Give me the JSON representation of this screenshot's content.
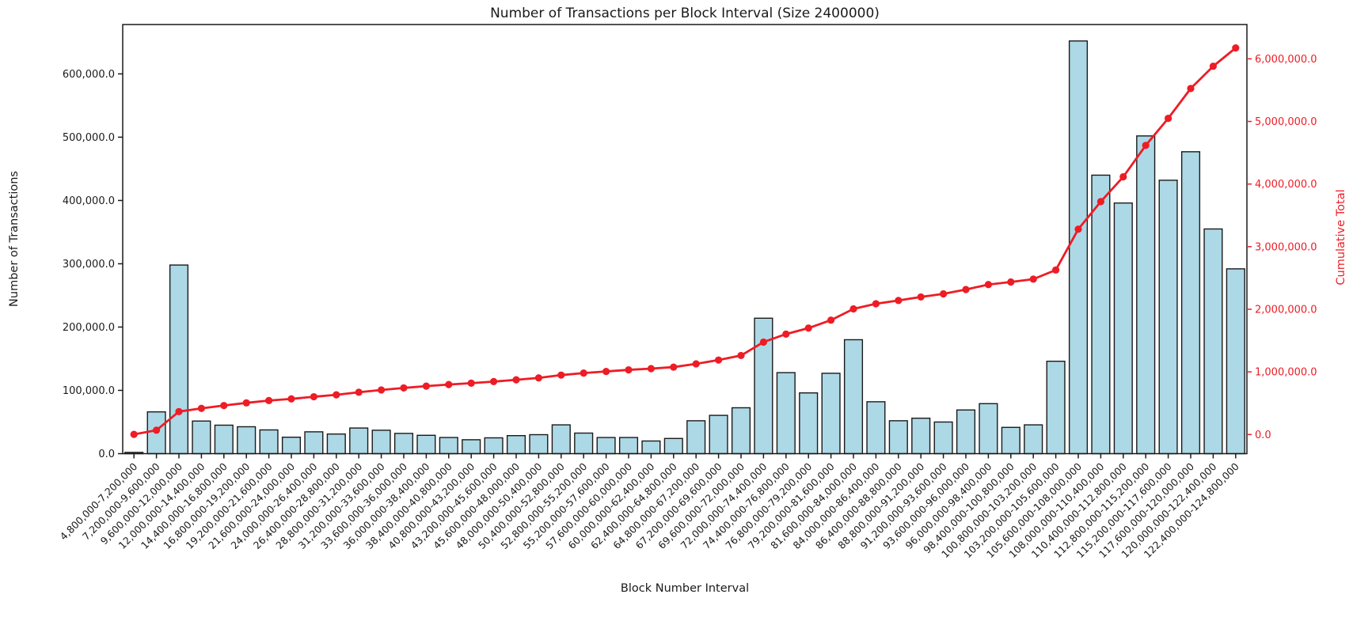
{
  "chart_data": {
    "type": "bar",
    "title": "Number of Transactions per Block Interval (Size 2400000)",
    "xlabel": "Block Number Interval",
    "ylabel_left": "Number of Transactions",
    "ylabel_right": "Cumulative Total",
    "grid": false,
    "legend_visible": false,
    "colors": {
      "bar_fill": "#add8e6",
      "bar_edge": "#1a1a1a",
      "line": "#ee1c25",
      "axis": "#1a1a1a",
      "background": "#ffffff"
    },
    "categories": [
      "4,800,000-7,200,000",
      "7,200,000-9,600,000",
      "9,600,000-12,000,000",
      "12,000,000-14,400,000",
      "14,400,000-16,800,000",
      "16,800,000-19,200,000",
      "19,200,000-21,600,000",
      "21,600,000-24,000,000",
      "24,000,000-26,400,000",
      "26,400,000-28,800,000",
      "28,800,000-31,200,000",
      "31,200,000-33,600,000",
      "33,600,000-36,000,000",
      "36,000,000-38,400,000",
      "38,400,000-40,800,000",
      "40,800,000-43,200,000",
      "43,200,000-45,600,000",
      "45,600,000-48,000,000",
      "48,000,000-50,400,000",
      "50,400,000-52,800,000",
      "52,800,000-55,200,000",
      "55,200,000-57,600,000",
      "57,600,000-60,000,000",
      "60,000,000-62,400,000",
      "62,400,000-64,800,000",
      "64,800,000-67,200,000",
      "67,200,000-69,600,000",
      "69,600,000-72,000,000",
      "72,000,000-74,400,000",
      "74,400,000-76,800,000",
      "76,800,000-79,200,000",
      "79,200,000-81,600,000",
      "81,600,000-84,000,000",
      "84,000,000-86,400,000",
      "86,400,000-88,800,000",
      "88,800,000-91,200,000",
      "91,200,000-93,600,000",
      "93,600,000-96,000,000",
      "96,000,000-98,400,000",
      "98,400,000-100,800,000",
      "100,800,000-103,200,000",
      "103,200,000-105,600,000",
      "105,600,000-108,000,000",
      "108,000,000-110,400,000",
      "110,400,000-112,800,000",
      "112,800,000-115,200,000",
      "115,200,000-117,600,000",
      "117,600,000-120,000,000",
      "120,000,000-122,400,000",
      "122,400,000-124,800,000"
    ],
    "series": [
      {
        "name": "Number of Transactions",
        "type": "bar",
        "axis": "left",
        "values": [
          2000,
          66000,
          298000,
          51500,
          45000,
          42500,
          37500,
          26000,
          34500,
          31000,
          40500,
          37000,
          32000,
          29000,
          25500,
          22000,
          25000,
          28500,
          30000,
          45500,
          32500,
          25500,
          25500,
          20000,
          24000,
          52000,
          60500,
          72500,
          214000,
          128000,
          96000,
          127000,
          180000,
          82000,
          52000,
          56000,
          50000,
          69000,
          79000,
          41500,
          45500,
          146000,
          652000,
          440000,
          396000,
          502000,
          432000,
          477000,
          355000,
          292000
        ]
      },
      {
        "name": "Cumulative Total",
        "type": "line",
        "axis": "right",
        "values": [
          2000,
          68000,
          366000,
          417500,
          462500,
          505000,
          542500,
          568500,
          603000,
          634000,
          674500,
          711500,
          743500,
          772500,
          798000,
          820000,
          845000,
          873500,
          903500,
          949000,
          981500,
          1007000,
          1032500,
          1052500,
          1076500,
          1128500,
          1189000,
          1261500,
          1475500,
          1603500,
          1699500,
          1826500,
          2006500,
          2088500,
          2140500,
          2196500,
          2246500,
          2315500,
          2394500,
          2436000,
          2481500,
          2627500,
          3279500,
          3719500,
          4115500,
          4617500,
          5049500,
          5526500,
          5881500,
          6173500
        ]
      }
    ],
    "left_axis": {
      "lim": [
        0,
        678000
      ],
      "ticks": [
        {
          "v": 0,
          "label": "0.0"
        },
        {
          "v": 100000,
          "label": "100,000.0"
        },
        {
          "v": 200000,
          "label": "200,000.0"
        },
        {
          "v": 300000,
          "label": "300,000.0"
        },
        {
          "v": 400000,
          "label": "400,000.0"
        },
        {
          "v": 500000,
          "label": "500,000.0"
        },
        {
          "v": 600000,
          "label": "600,000.0"
        }
      ]
    },
    "right_axis": {
      "lim": [
        -306000,
        6548000
      ],
      "ticks": [
        {
          "v": 0,
          "label": "0.0"
        },
        {
          "v": 1000000,
          "label": "1,000,000.0"
        },
        {
          "v": 2000000,
          "label": "2,000,000.0"
        },
        {
          "v": 3000000,
          "label": "3,000,000.0"
        },
        {
          "v": 4000000,
          "label": "4,000,000.0"
        },
        {
          "v": 5000000,
          "label": "5,000,000.0"
        },
        {
          "v": 6000000,
          "label": "6,000,000.0"
        }
      ]
    }
  }
}
